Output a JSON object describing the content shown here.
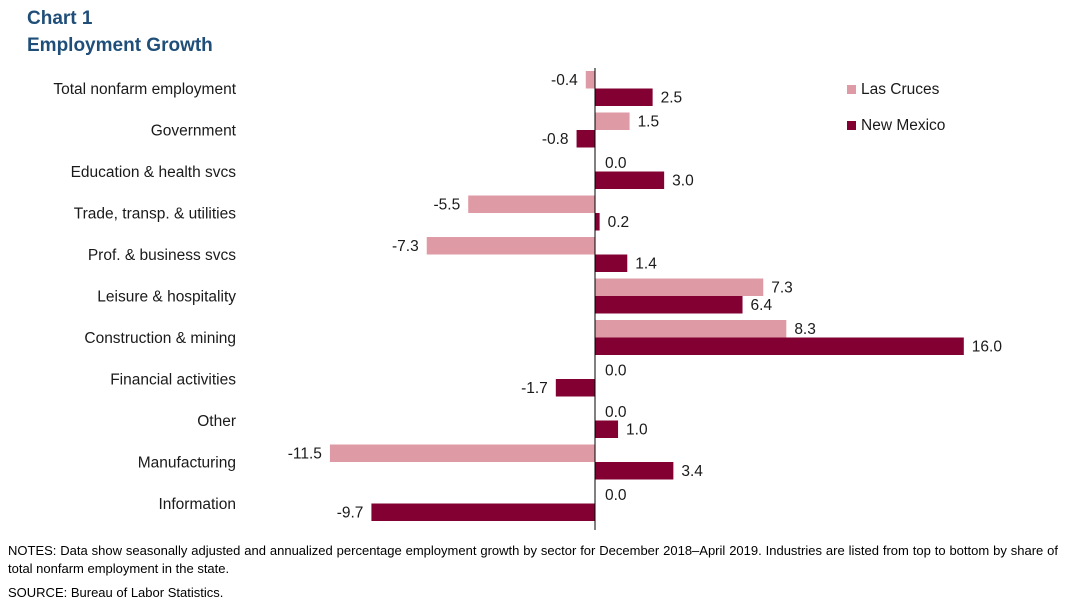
{
  "title_line1": "Chart 1",
  "title_line2": "Employment  Growth",
  "notes": "NOTES:  Data show seasonally adjusted and annualized percentage employment  growth by sector for December 2018–April 2019. Industries are listed from top to bottom by share of total nonfarm employment  in the state.",
  "source": "SOURCE:  Bureau of Labor Statistics.",
  "chart_data": {
    "type": "bar",
    "orientation": "horizontal",
    "title": "Employment  Growth",
    "categories": [
      "Total nonfarm employment",
      "Government",
      "Education & health svcs",
      "Trade, transp. & utilities",
      "Prof. & business svcs",
      "Leisure & hospitality",
      "Construction & mining",
      "Financial activities",
      "Other",
      "Manufacturing",
      "Information"
    ],
    "series": [
      {
        "name": "Las Cruces",
        "color": "#DE9AA5",
        "values": [
          -0.4,
          1.5,
          0.0,
          -5.5,
          -7.3,
          7.3,
          8.3,
          0.0,
          0.0,
          -11.5,
          0.0
        ],
        "labels": [
          "-0.4",
          "1.5",
          "0.0",
          "-5.5",
          "-7.3",
          "7.3",
          "8.3",
          "0.0",
          "0.0",
          "-11.5",
          "0.0"
        ]
      },
      {
        "name": "New Mexico",
        "color": "#820032",
        "values": [
          2.5,
          -0.8,
          3.0,
          0.2,
          1.4,
          6.4,
          16.0,
          -1.7,
          1.0,
          3.4,
          -9.7
        ],
        "labels": [
          "2.5",
          "-0.8",
          "3.0",
          "0.2",
          "1.4",
          "6.4",
          "16.0",
          "-1.7",
          "1.0",
          "3.4",
          "-9.7"
        ]
      }
    ],
    "legend": "top-right",
    "grid": false
  }
}
